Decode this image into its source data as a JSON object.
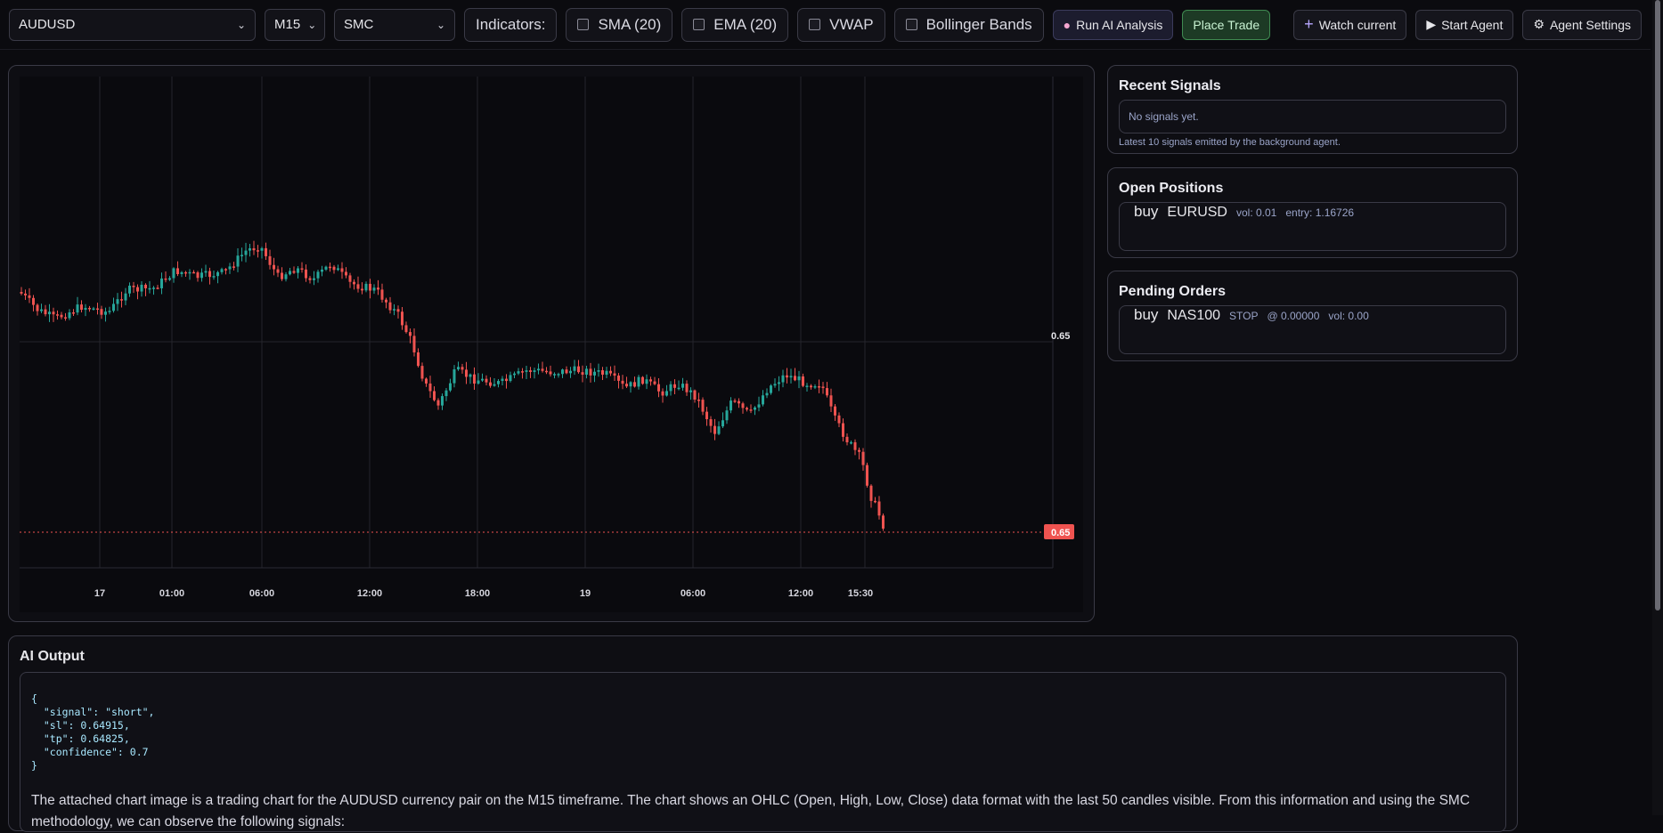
{
  "toolbar": {
    "symbol": "AUDUSD",
    "timeframe": "M15",
    "strategy": "SMC",
    "indicators_label": "Indicators:",
    "indicators": [
      {
        "label": "SMA (20)",
        "checked": false
      },
      {
        "label": "EMA (20)",
        "checked": false
      },
      {
        "label": "VWAP",
        "checked": false
      },
      {
        "label": "Bollinger Bands",
        "checked": false
      }
    ],
    "run_ai_label": "Run AI Analysis",
    "place_trade_label": "Place Trade",
    "watch_label": "Watch current",
    "start_agent_label": "Start Agent",
    "agent_settings_label": "Agent Settings"
  },
  "chart": {
    "price_level_label": "0.65",
    "current_price_label": "0.65",
    "x_ticks": [
      "17",
      "01:00",
      "06:00",
      "12:00",
      "18:00",
      "19",
      "06:00",
      "12:00",
      "15:30"
    ],
    "colors": {
      "up": "#26a69a",
      "down": "#ef5350",
      "current": "#ef5350"
    }
  },
  "recent_signals": {
    "title": "Recent Signals",
    "empty_text": "No signals yet.",
    "hint": "Latest 10 signals emitted by the background agent."
  },
  "open_positions": {
    "title": "Open Positions",
    "items": [
      {
        "side": "buy",
        "symbol": "EURUSD",
        "vol": "vol: 0.01",
        "entry": "entry: 1.16726"
      }
    ]
  },
  "pending_orders": {
    "title": "Pending Orders",
    "items": [
      {
        "side": "buy",
        "symbol": "NAS100",
        "type": "STOP",
        "price": "@ 0.00000",
        "vol": "vol: 0.00"
      }
    ]
  },
  "ai_output": {
    "title": "AI Output",
    "json_text": "{\n  \"signal\": \"short\",\n  \"sl\": 0.64915,\n  \"tp\": 0.64825,\n  \"confidence\": 0.7\n}",
    "text": "The attached chart image is a trading chart for the AUDUSD currency pair on the M15 timeframe. The chart shows an OHLC (Open, High, Low, Close) data format with the last 50 candles visible. From this information and using the SMC methodology, we can observe the following signals:"
  }
}
